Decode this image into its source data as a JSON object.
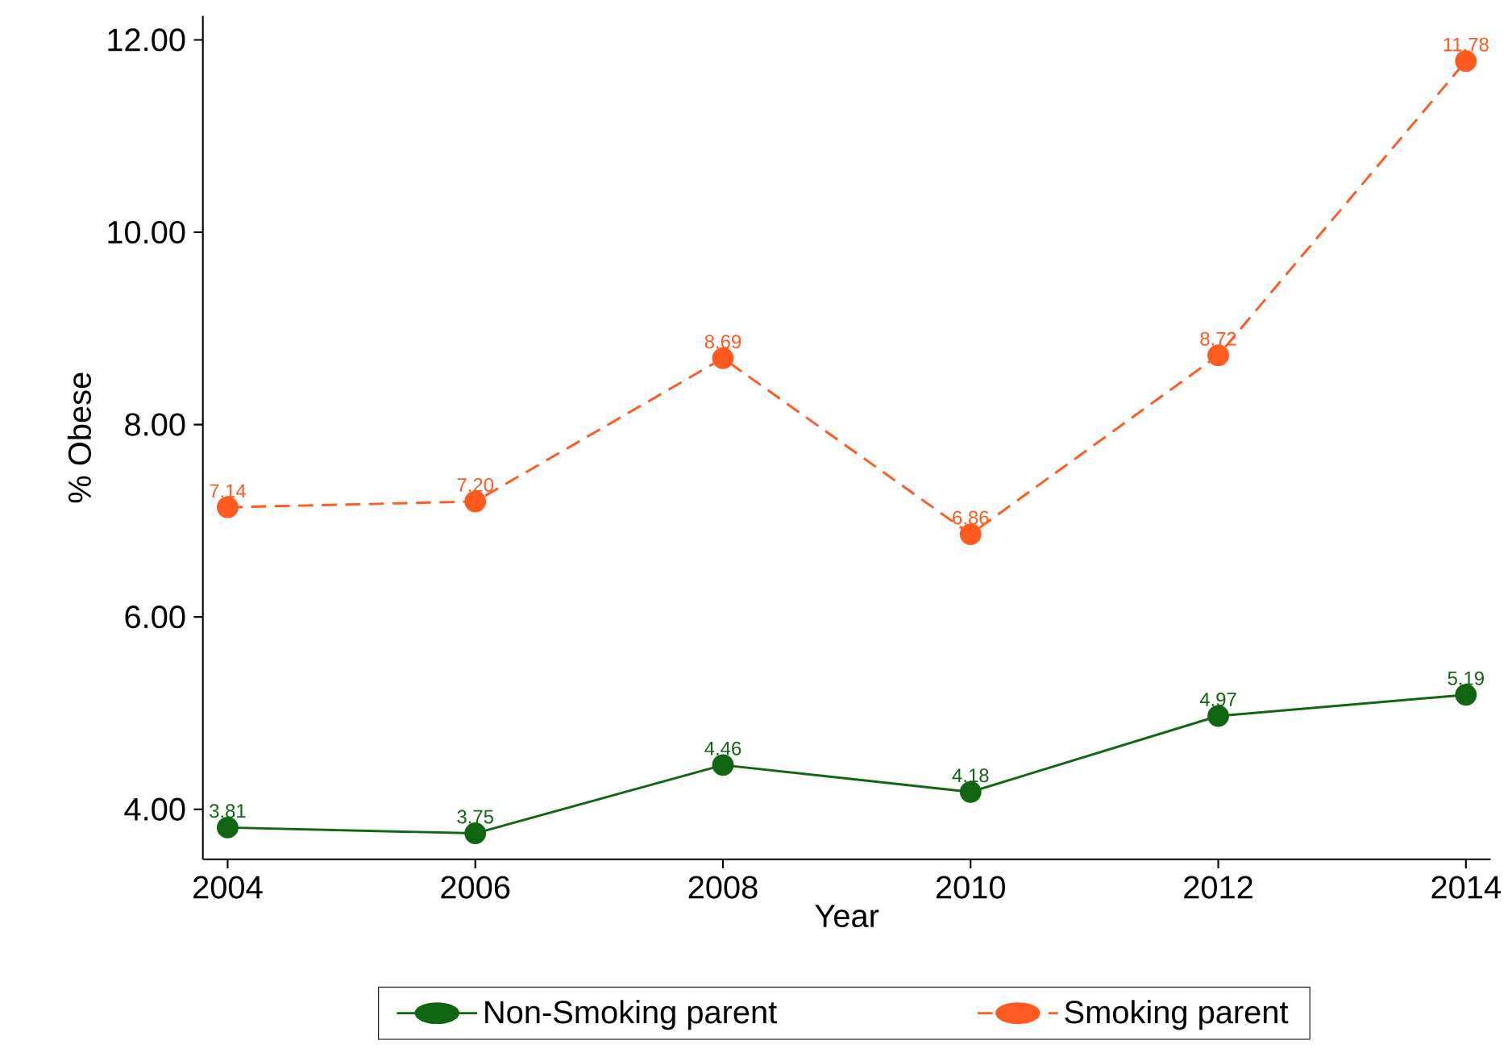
{
  "chart_data": {
    "type": "line",
    "xlabel": "Year",
    "ylabel": "% Obese",
    "x": [
      2004,
      2006,
      2008,
      2010,
      2012,
      2014
    ],
    "series": [
      {
        "name": "Non-Smoking parent",
        "color": "#116611",
        "line_style": "solid",
        "values": [
          3.81,
          3.75,
          4.46,
          4.18,
          4.97,
          5.19
        ],
        "value_labels": [
          "3.81",
          "3.75",
          "4.46",
          "4.18",
          "4.97",
          "5.19"
        ]
      },
      {
        "name": "Smoking parent",
        "color": "#ff5a1f",
        "line_style": "dashed",
        "values": [
          7.14,
          7.2,
          8.69,
          6.86,
          8.72,
          11.78
        ],
        "value_labels": [
          "7.14",
          "7.20",
          "8.69",
          "6.86",
          "8.72",
          "11.78"
        ]
      }
    ],
    "xlim": [
      2003.8,
      2014.2
    ],
    "ylim": [
      3.48,
      12.25
    ],
    "xticks": [
      2004,
      2006,
      2008,
      2010,
      2012,
      2014
    ],
    "yticks": [
      {
        "value": 4,
        "label": "4.00"
      },
      {
        "value": 6,
        "label": "6.00"
      },
      {
        "value": 8,
        "label": "8.00"
      },
      {
        "value": 10,
        "label": "10.00"
      },
      {
        "value": 12,
        "label": "12.00"
      }
    ],
    "marker": "circle",
    "legend": "bottom",
    "grid": false
  }
}
